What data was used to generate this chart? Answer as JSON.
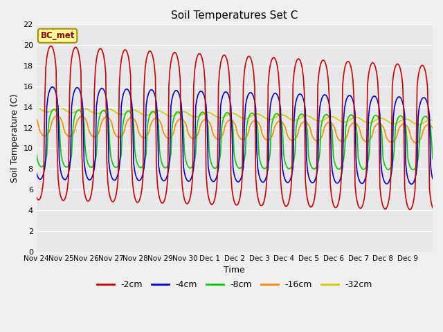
{
  "title": "Soil Temperatures Set C",
  "xlabel": "Time",
  "ylabel": "Soil Temperature (C)",
  "ylim": [
    0,
    22
  ],
  "yticks": [
    0,
    2,
    4,
    6,
    8,
    10,
    12,
    14,
    16,
    18,
    20,
    22
  ],
  "x_labels": [
    "Nov 24",
    "Nov 25",
    "Nov 26",
    "Nov 27",
    "Nov 28",
    "Nov 29",
    "Nov 30",
    "Dec 1",
    "Dec 2",
    "Dec 3",
    "Dec 4",
    "Dec 5",
    "Dec 6",
    "Dec 7",
    "Dec 8",
    "Dec 9"
  ],
  "series_colors": [
    "#cc0000",
    "#0000cc",
    "#00cc00",
    "#ff8800",
    "#cccc00"
  ],
  "series_labels": [
    "-2cm",
    "-4cm",
    "-8cm",
    "-16cm",
    "-32cm"
  ],
  "plot_bg_color": "#e8e8e8",
  "fig_bg_color": "#f0f0f0",
  "annotation_text": "BC_met",
  "annotation_bg": "#ffff99",
  "annotation_border": "#aa8800",
  "n_days": 16,
  "hours_per_day": 24
}
